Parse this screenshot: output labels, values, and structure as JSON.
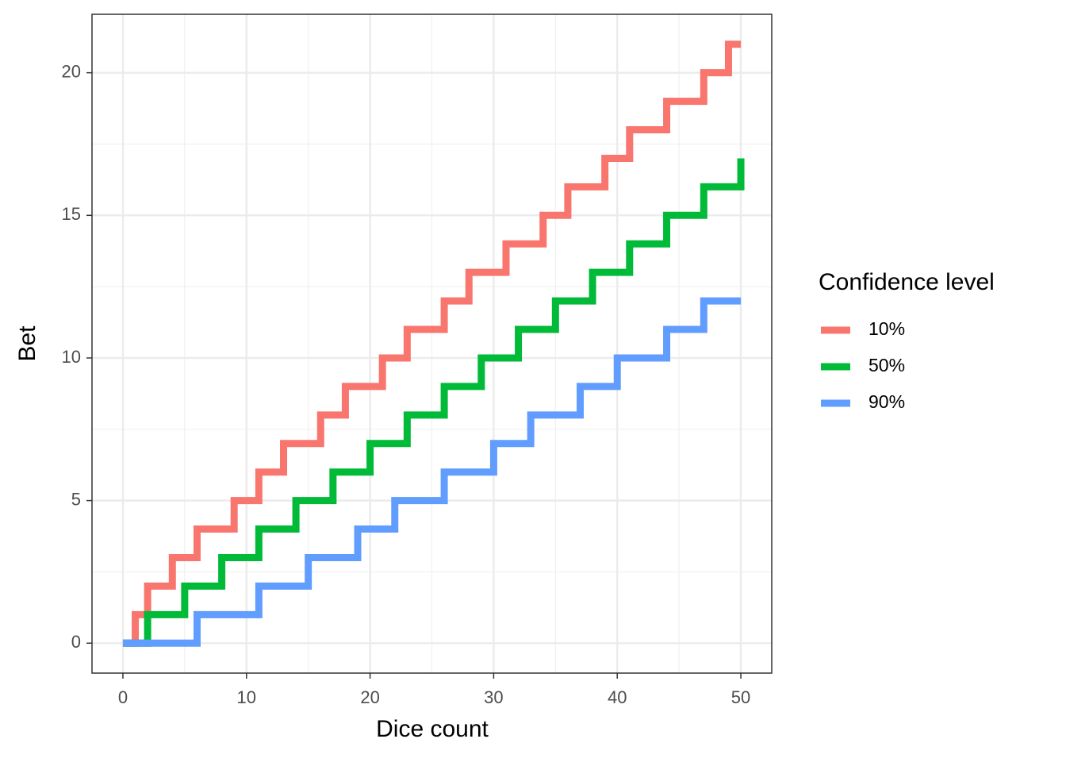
{
  "chart_data": {
    "type": "step",
    "x_label": "Dice count",
    "y_label": "Bet",
    "legend_title": "Confidence level",
    "legend_position": "right",
    "x": [
      0,
      1,
      2,
      3,
      4,
      5,
      6,
      7,
      8,
      9,
      10,
      11,
      12,
      13,
      14,
      15,
      16,
      17,
      18,
      19,
      20,
      21,
      22,
      23,
      24,
      25,
      26,
      27,
      28,
      29,
      30,
      31,
      32,
      33,
      34,
      35,
      36,
      37,
      38,
      39,
      40,
      41,
      42,
      43,
      44,
      45,
      46,
      47,
      48,
      49,
      50
    ],
    "series": [
      {
        "name": "10%",
        "color": "#F8766D",
        "values": [
          0,
          1,
          2,
          2,
          3,
          3,
          4,
          4,
          4,
          5,
          5,
          6,
          6,
          7,
          7,
          7,
          8,
          8,
          9,
          9,
          9,
          10,
          10,
          11,
          11,
          11,
          12,
          12,
          13,
          13,
          13,
          14,
          14,
          14,
          15,
          15,
          16,
          16,
          16,
          17,
          17,
          18,
          18,
          18,
          19,
          19,
          19,
          20,
          20,
          21,
          21
        ]
      },
      {
        "name": "50%",
        "color": "#00BA38",
        "values": [
          0,
          0,
          1,
          1,
          1,
          2,
          2,
          2,
          3,
          3,
          3,
          4,
          4,
          4,
          5,
          5,
          5,
          6,
          6,
          6,
          7,
          7,
          7,
          8,
          8,
          8,
          9,
          9,
          9,
          10,
          10,
          10,
          11,
          11,
          11,
          12,
          12,
          12,
          13,
          13,
          13,
          14,
          14,
          14,
          15,
          15,
          15,
          16,
          16,
          16,
          17
        ]
      },
      {
        "name": "90%",
        "color": "#619CFF",
        "values": [
          0,
          0,
          0,
          0,
          0,
          0,
          1,
          1,
          1,
          1,
          1,
          2,
          2,
          2,
          2,
          3,
          3,
          3,
          3,
          4,
          4,
          4,
          5,
          5,
          5,
          5,
          6,
          6,
          6,
          6,
          7,
          7,
          7,
          8,
          8,
          8,
          8,
          9,
          9,
          9,
          10,
          10,
          10,
          10,
          11,
          11,
          11,
          12,
          12,
          12,
          12
        ]
      }
    ],
    "xlim": [
      -2.5,
      52.5
    ],
    "ylim": [
      -1.05,
      22.05
    ],
    "xticks": [
      0,
      10,
      20,
      30,
      40,
      50
    ],
    "yticks": [
      0,
      5,
      10,
      15,
      20
    ],
    "x_minor_ticks": [
      5,
      15,
      25,
      35,
      45
    ],
    "y_minor_ticks": [
      2.5,
      7.5,
      12.5,
      17.5
    ],
    "grid": true
  }
}
